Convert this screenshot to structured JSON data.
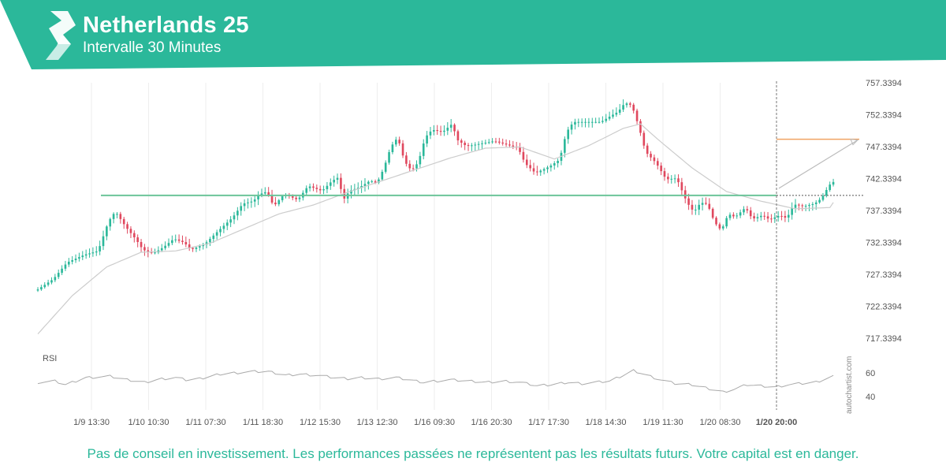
{
  "header": {
    "title": "Netherlands 25",
    "subtitle": "Intervalle 30 Minutes",
    "brand_color": "#2bb89a",
    "logo_icon": "autochartist-logo-icon"
  },
  "disclaimer": "Pas de conseil en investissement. Les performances passées ne représentent pas les résultats futurs. Votre capital est en danger.",
  "watermark": "autochartist.com",
  "chart_data": {
    "type": "candlestick",
    "x_labels": [
      "1/9 13:30",
      "1/10 10:30",
      "1/11 07:30",
      "1/11 18:30",
      "1/12 15:30",
      "1/13 12:30",
      "1/16 09:30",
      "1/16 20:30",
      "1/17 17:30",
      "1/18 14:30",
      "1/19 11:30",
      "1/20 08:30",
      "1/20 20:00"
    ],
    "y_ticks": [
      "757.3394",
      "752.3394",
      "747.3394",
      "742.3394",
      "737.3394",
      "732.3394",
      "727.3394",
      "722.3394",
      "717.3394"
    ],
    "ylim": [
      717.3394,
      757.3394
    ],
    "bar_count": 240,
    "price_anchors": [
      [
        0,
        724.8
      ],
      [
        5,
        726.6
      ],
      [
        9,
        729.2
      ],
      [
        14,
        730.4
      ],
      [
        18,
        731.0
      ],
      [
        21,
        735.6
      ],
      [
        23,
        737.2
      ],
      [
        26,
        734.8
      ],
      [
        29,
        732.8
      ],
      [
        31,
        731.2
      ],
      [
        34,
        730.6
      ],
      [
        37,
        731.6
      ],
      [
        40,
        732.9
      ],
      [
        43,
        732.3
      ],
      [
        45,
        731.2
      ],
      [
        49,
        732.1
      ],
      [
        53,
        734.2
      ],
      [
        57,
        736.2
      ],
      [
        60,
        738.4
      ],
      [
        63,
        738.8
      ],
      [
        65,
        739.9
      ],
      [
        67,
        740.3
      ],
      [
        69,
        738.0
      ],
      [
        72,
        739.9
      ],
      [
        76,
        739.0
      ],
      [
        79,
        741.2
      ],
      [
        83,
        740.4
      ],
      [
        86,
        742.0
      ],
      [
        88,
        742.6
      ],
      [
        89,
        738.8
      ],
      [
        91,
        740.4
      ],
      [
        94,
        741.0
      ],
      [
        97,
        742.0
      ],
      [
        99,
        741.6
      ],
      [
        101,
        744.0
      ],
      [
        103,
        747.3
      ],
      [
        105,
        748.8
      ],
      [
        107,
        745.0
      ],
      [
        109,
        743.6
      ],
      [
        111,
        744.9
      ],
      [
        113,
        748.8
      ],
      [
        115,
        750.0
      ],
      [
        118,
        749.6
      ],
      [
        121,
        751.0
      ],
      [
        122,
        748.5
      ],
      [
        125,
        747.4
      ],
      [
        129,
        747.8
      ],
      [
        133,
        748.2
      ],
      [
        137,
        747.6
      ],
      [
        140,
        747.1
      ],
      [
        142,
        744.7
      ],
      [
        145,
        743.2
      ],
      [
        149,
        744.2
      ],
      [
        152,
        745.3
      ],
      [
        154,
        749.6
      ],
      [
        156,
        751.2
      ],
      [
        160,
        751.2
      ],
      [
        164,
        751.2
      ],
      [
        167,
        752.2
      ],
      [
        169,
        752.8
      ],
      [
        171,
        754.2
      ],
      [
        173,
        753.8
      ],
      [
        175,
        750.5
      ],
      [
        177,
        746.5
      ],
      [
        180,
        744.8
      ],
      [
        183,
        742.2
      ],
      [
        186,
        742.4
      ],
      [
        189,
        738.6
      ],
      [
        191,
        737.1
      ],
      [
        193,
        738.6
      ],
      [
        195,
        738.3
      ],
      [
        197,
        735.5
      ],
      [
        199,
        734.2
      ],
      [
        201,
        736.8
      ],
      [
        203,
        736.3
      ],
      [
        206,
        737.8
      ],
      [
        208,
        736.0
      ],
      [
        211,
        736.6
      ],
      [
        213,
        735.9
      ],
      [
        216,
        736.6
      ],
      [
        218,
        736.1
      ],
      [
        220,
        738.3
      ],
      [
        223,
        738.0
      ],
      [
        226,
        738.4
      ],
      [
        228,
        739.2
      ],
      [
        230,
        741.0
      ],
      [
        231,
        741.8
      ]
    ],
    "series": [
      {
        "name": "",
        "type": "moving-average",
        "anchors": [
          [
            0,
            718.0
          ],
          [
            10,
            724.0
          ],
          [
            20,
            728.5
          ],
          [
            30,
            730.8
          ],
          [
            40,
            731.0
          ],
          [
            50,
            732.2
          ],
          [
            60,
            734.5
          ],
          [
            70,
            736.8
          ],
          [
            80,
            738.2
          ],
          [
            90,
            740.2
          ],
          [
            100,
            742.0
          ],
          [
            110,
            743.8
          ],
          [
            120,
            745.6
          ],
          [
            130,
            747.1
          ],
          [
            140,
            747.3
          ],
          [
            150,
            745.4
          ],
          [
            160,
            747.5
          ],
          [
            170,
            750.2
          ],
          [
            175,
            750.9
          ],
          [
            180,
            748.5
          ],
          [
            190,
            744.0
          ],
          [
            200,
            740.3
          ],
          [
            210,
            738.8
          ],
          [
            220,
            737.6
          ],
          [
            230,
            737.8
          ],
          [
            231,
            738.6
          ]
        ]
      }
    ],
    "rsi": {
      "label": "RSI",
      "y_ticks": [
        "60",
        "40"
      ],
      "ylim": [
        40,
        60
      ],
      "anchors": [
        [
          0,
          52
        ],
        [
          5,
          53
        ],
        [
          8,
          50
        ],
        [
          14,
          56
        ],
        [
          21,
          57
        ],
        [
          26,
          54
        ],
        [
          31,
          52
        ],
        [
          36,
          55
        ],
        [
          40,
          56
        ],
        [
          43,
          54
        ],
        [
          47,
          55
        ],
        [
          53,
          59
        ],
        [
          57,
          60
        ],
        [
          62,
          61
        ],
        [
          67,
          61
        ],
        [
          72,
          58
        ],
        [
          76,
          59
        ],
        [
          81,
          58
        ],
        [
          86,
          56
        ],
        [
          90,
          55
        ],
        [
          94,
          56
        ],
        [
          99,
          55
        ],
        [
          104,
          56
        ],
        [
          108,
          54
        ],
        [
          112,
          52
        ],
        [
          115,
          53
        ],
        [
          120,
          54
        ],
        [
          125,
          53
        ],
        [
          130,
          52
        ],
        [
          136,
          53
        ],
        [
          140,
          52
        ],
        [
          145,
          49
        ],
        [
          149,
          50
        ],
        [
          154,
          52
        ],
        [
          158,
          51
        ],
        [
          162,
          52
        ],
        [
          166,
          53
        ],
        [
          170,
          58
        ],
        [
          173,
          62
        ],
        [
          176,
          59
        ],
        [
          180,
          55
        ],
        [
          185,
          51
        ],
        [
          190,
          50
        ],
        [
          196,
          46
        ],
        [
          199,
          44
        ],
        [
          202,
          46
        ],
        [
          206,
          50
        ],
        [
          210,
          49
        ],
        [
          214,
          48
        ],
        [
          218,
          50
        ],
        [
          222,
          51
        ],
        [
          226,
          52
        ],
        [
          229,
          55
        ],
        [
          231,
          57
        ]
      ]
    },
    "support_level": 739.7,
    "target_level": 748.5,
    "current_time_label": "1/20 20:00",
    "colors": {
      "up": "#2bb89a",
      "down": "#e0485e",
      "support": "#6cc49a",
      "target": "#f0a363",
      "ma": "#cccccc",
      "rsi": "#aaaaaa",
      "grid": "#eeeeee"
    }
  }
}
